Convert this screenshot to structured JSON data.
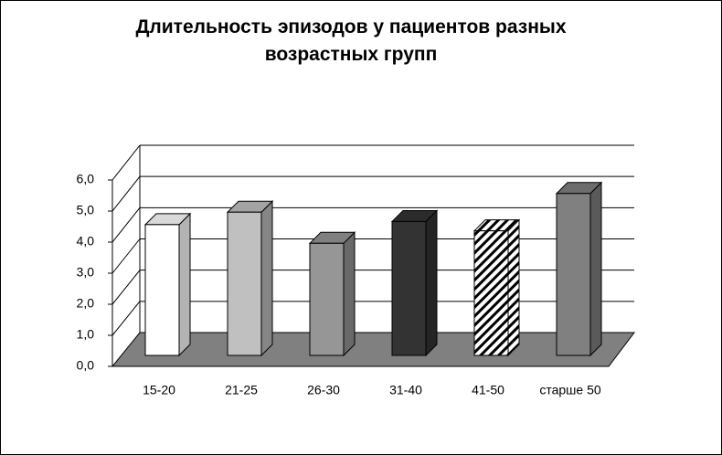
{
  "chart_data": {
    "type": "bar3d",
    "title": "Длительность эпизодов у пациентов разных возрастных групп",
    "categories": [
      "15-20",
      "21-25",
      "26-30",
      "31-40",
      "41-50",
      "старше 50"
    ],
    "values": [
      4.2,
      4.6,
      3.6,
      4.3,
      4.0,
      5.2
    ],
    "fills": [
      "#ffffff",
      "#c0c0c0",
      "#969696",
      "#333333",
      "hatch",
      "#808080"
    ],
    "ylim": [
      0,
      6
    ],
    "yticks": [
      {
        "value": 0,
        "label": "0,0"
      },
      {
        "value": 1,
        "label": "1,0"
      },
      {
        "value": 2,
        "label": "2,0"
      },
      {
        "value": 3,
        "label": "3,0"
      },
      {
        "value": 4,
        "label": "4,0"
      },
      {
        "value": 5,
        "label": "5,0"
      },
      {
        "value": 6,
        "label": "6,0"
      }
    ],
    "grid": true
  }
}
